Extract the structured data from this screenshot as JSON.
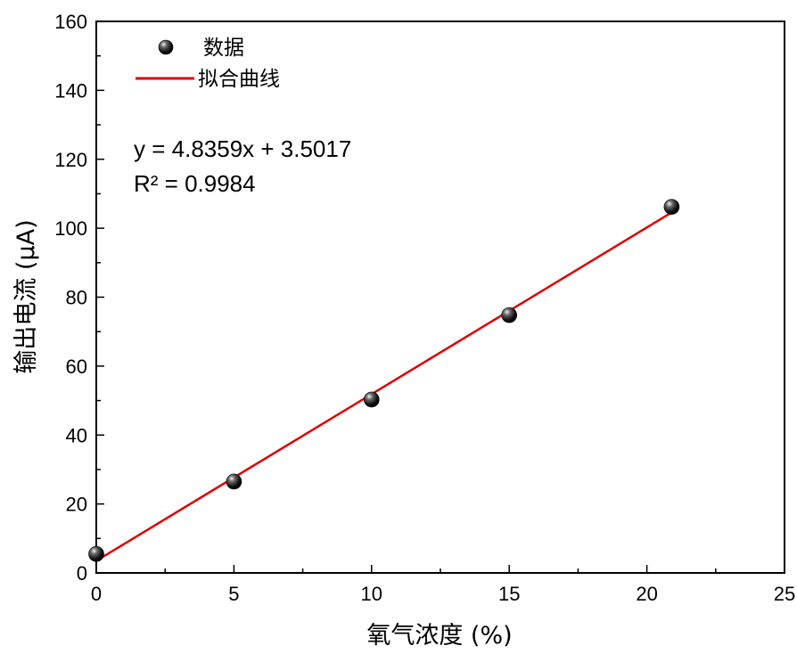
{
  "chart_data": {
    "type": "scatter",
    "title": "",
    "xlabel": "氧气浓度 (%)",
    "ylabel": "输出电流 (μA)",
    "xlim": [
      0,
      25
    ],
    "ylim": [
      0,
      160
    ],
    "x_ticks": [
      0,
      5,
      10,
      15,
      20,
      25
    ],
    "y_ticks": [
      0,
      20,
      40,
      60,
      80,
      100,
      120,
      140,
      160
    ],
    "x_minor_step": 2.5,
    "y_minor_step": 10,
    "grid": false,
    "legend_position": "top-left",
    "series": [
      {
        "name": "数据",
        "kind": "scatter",
        "color": "#000000",
        "x": [
          0,
          5,
          10,
          15,
          20.9
        ],
        "y": [
          5.5,
          26.5,
          50.3,
          74.8,
          106.2
        ]
      },
      {
        "name": "拟合曲线",
        "kind": "line",
        "color": "#e00000",
        "slope": 4.8359,
        "intercept": 3.5017,
        "x_range": [
          0,
          20.9
        ]
      }
    ],
    "annotations": [
      "y = 4.8359x + 3.5017",
      "R² = 0.9984"
    ]
  }
}
